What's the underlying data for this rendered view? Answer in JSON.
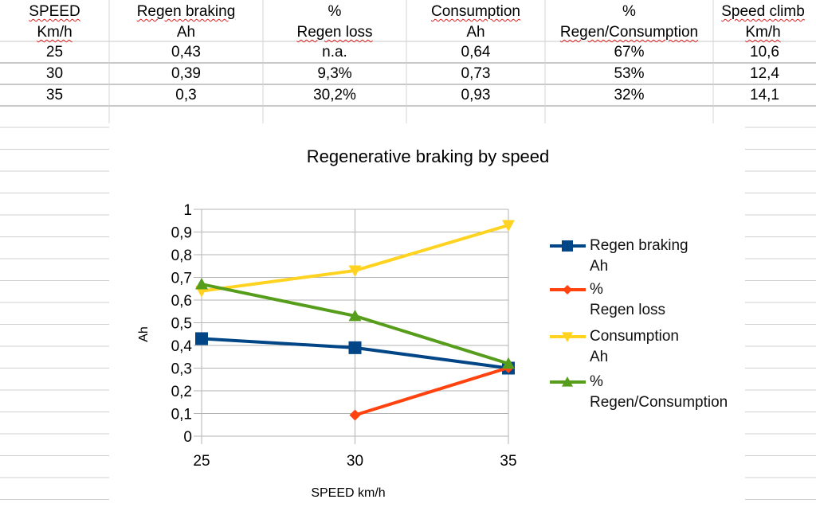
{
  "table": {
    "headers": [
      [
        "SPEED",
        "Km/h"
      ],
      [
        "Regen braking",
        "Ah"
      ],
      [
        "%",
        "Regen loss"
      ],
      [
        "Consumption",
        "Ah"
      ],
      [
        "%",
        "Regen/Consumption"
      ],
      [
        "Speed climb",
        "Km/h"
      ]
    ],
    "rows": [
      [
        "25",
        "0,43",
        "n.a.",
        "0,64",
        "67%",
        "10,6"
      ],
      [
        "30",
        "0,39",
        "9,3%",
        "0,73",
        "53%",
        "12,4"
      ],
      [
        "35",
        "0,3",
        "30,2%",
        "0,93",
        "32%",
        "14,1"
      ]
    ]
  },
  "chart_data": {
    "type": "line",
    "title": "Regenerative braking by speed",
    "xlabel": "SPEED km/h",
    "ylabel": "Ah",
    "categories": [
      "25",
      "30",
      "35"
    ],
    "ylim": [
      0,
      1
    ],
    "yticks": [
      "0",
      "0,1",
      "0,2",
      "0,3",
      "0,4",
      "0,5",
      "0,6",
      "0,7",
      "0,8",
      "0,9",
      "1"
    ],
    "grid": true,
    "legend_position": "right",
    "series": [
      {
        "name": "Regen braking Ah",
        "legend": [
          "Regen braking",
          "Ah"
        ],
        "values": [
          0.43,
          0.39,
          0.3
        ],
        "color": "#004586",
        "marker": "square"
      },
      {
        "name": "% Regen loss",
        "legend": [
          "%",
          "Regen loss"
        ],
        "values": [
          null,
          0.093,
          0.302
        ],
        "color": "#ff420e",
        "marker": "diamond"
      },
      {
        "name": "Consumption Ah",
        "legend": [
          "Consumption",
          "Ah"
        ],
        "values": [
          0.64,
          0.73,
          0.93
        ],
        "color": "#ffd320",
        "marker": "triangle-down"
      },
      {
        "name": "% Regen/Consumption",
        "legend": [
          "%",
          "Regen/Consumption"
        ],
        "values": [
          0.67,
          0.53,
          0.32
        ],
        "color": "#579d1c",
        "marker": "triangle-up"
      }
    ]
  }
}
